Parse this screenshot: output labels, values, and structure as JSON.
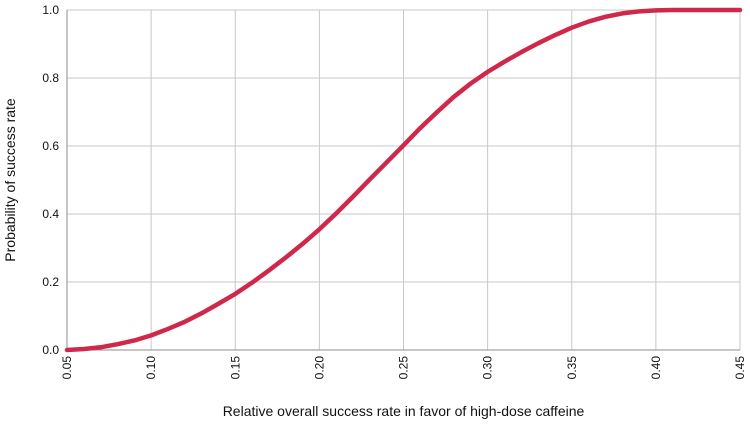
{
  "chart_data": {
    "type": "line",
    "title": "",
    "xlabel": "Relative overall success rate in favor of high-dose  caffeine",
    "ylabel": "Probability of success rate",
    "xlim": [
      0.05,
      0.45
    ],
    "ylim": [
      0,
      1.0
    ],
    "x_ticks": [
      "0.05",
      "0.10",
      "0.15",
      "0.20",
      "0.25",
      "0.30",
      "0.35",
      "0.40",
      "0.45"
    ],
    "y_ticks": [
      "0.0",
      "0.2",
      "0.4",
      "0.6",
      "0.8",
      "1.0"
    ],
    "grid": true,
    "series": [
      {
        "color": "#d0284a",
        "x": [
          0.05,
          0.06,
          0.07,
          0.08,
          0.09,
          0.1,
          0.11,
          0.12,
          0.13,
          0.14,
          0.15,
          0.16,
          0.17,
          0.18,
          0.19,
          0.2,
          0.21,
          0.22,
          0.23,
          0.24,
          0.25,
          0.26,
          0.27,
          0.28,
          0.29,
          0.3,
          0.31,
          0.32,
          0.33,
          0.34,
          0.35,
          0.36,
          0.37,
          0.38,
          0.39,
          0.4,
          0.41,
          0.42,
          0.43,
          0.44,
          0.45
        ],
        "y": [
          0.0,
          0.003,
          0.008,
          0.017,
          0.028,
          0.043,
          0.062,
          0.083,
          0.108,
          0.136,
          0.165,
          0.198,
          0.234,
          0.272,
          0.312,
          0.355,
          0.402,
          0.451,
          0.502,
          0.552,
          0.602,
          0.653,
          0.7,
          0.745,
          0.784,
          0.818,
          0.848,
          0.876,
          0.902,
          0.926,
          0.948,
          0.966,
          0.98,
          0.99,
          0.996,
          0.999,
          1.0,
          1.0,
          1.0,
          1.0,
          1.0
        ]
      }
    ]
  }
}
